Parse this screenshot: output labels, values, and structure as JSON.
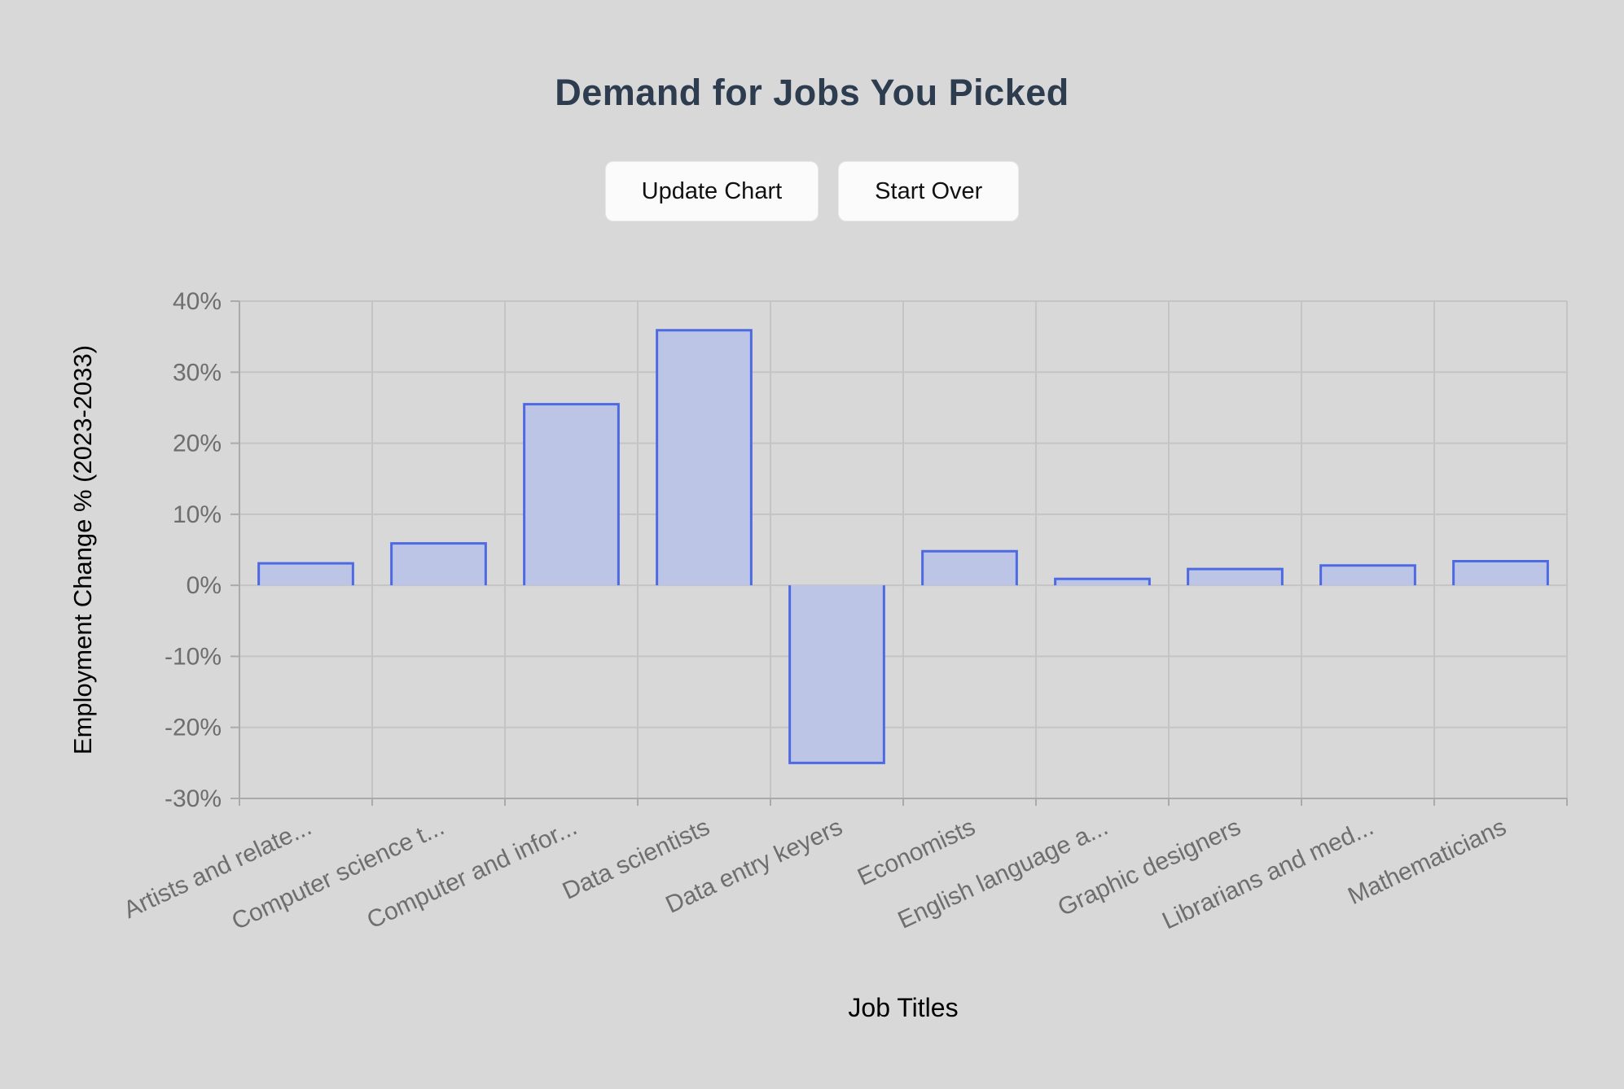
{
  "page": {
    "title": "Demand for Jobs You Picked",
    "background_color": "#d8d8d8"
  },
  "buttons": {
    "update_chart": "Update Chart",
    "start_over": "Start Over"
  },
  "chart_data": {
    "type": "bar",
    "title": "",
    "xlabel": "Job Titles",
    "ylabel": "Employment Change % (2023-2033)",
    "categories": [
      "Artists and relate...",
      "Computer science t...",
      "Computer and infor...",
      "Data scientists",
      "Data entry keyers",
      "Economists",
      "English language a...",
      "Graphic designers",
      "Librarians and med...",
      "Mathematicians"
    ],
    "values": [
      3.1,
      5.9,
      25.5,
      35.9,
      -25.0,
      4.8,
      0.9,
      2.3,
      2.8,
      3.4
    ],
    "ylim": [
      -30,
      40
    ],
    "ytick_step": 10,
    "ytick_labels": [
      "40%",
      "30%",
      "20%",
      "10%",
      "0%",
      "-10%",
      "-20%",
      "-30%"
    ],
    "ytick_format": "percent",
    "grid": true,
    "legend": false,
    "label_rotation_deg": -25,
    "colors": {
      "bar_fill": "#bdc5e6",
      "bar_border": "#4d6ae2",
      "grid_line": "#c4c4c4",
      "axis_border": "#aaaaaa",
      "tick_label": "#6e6e6e",
      "axis_title": "#000000"
    }
  }
}
